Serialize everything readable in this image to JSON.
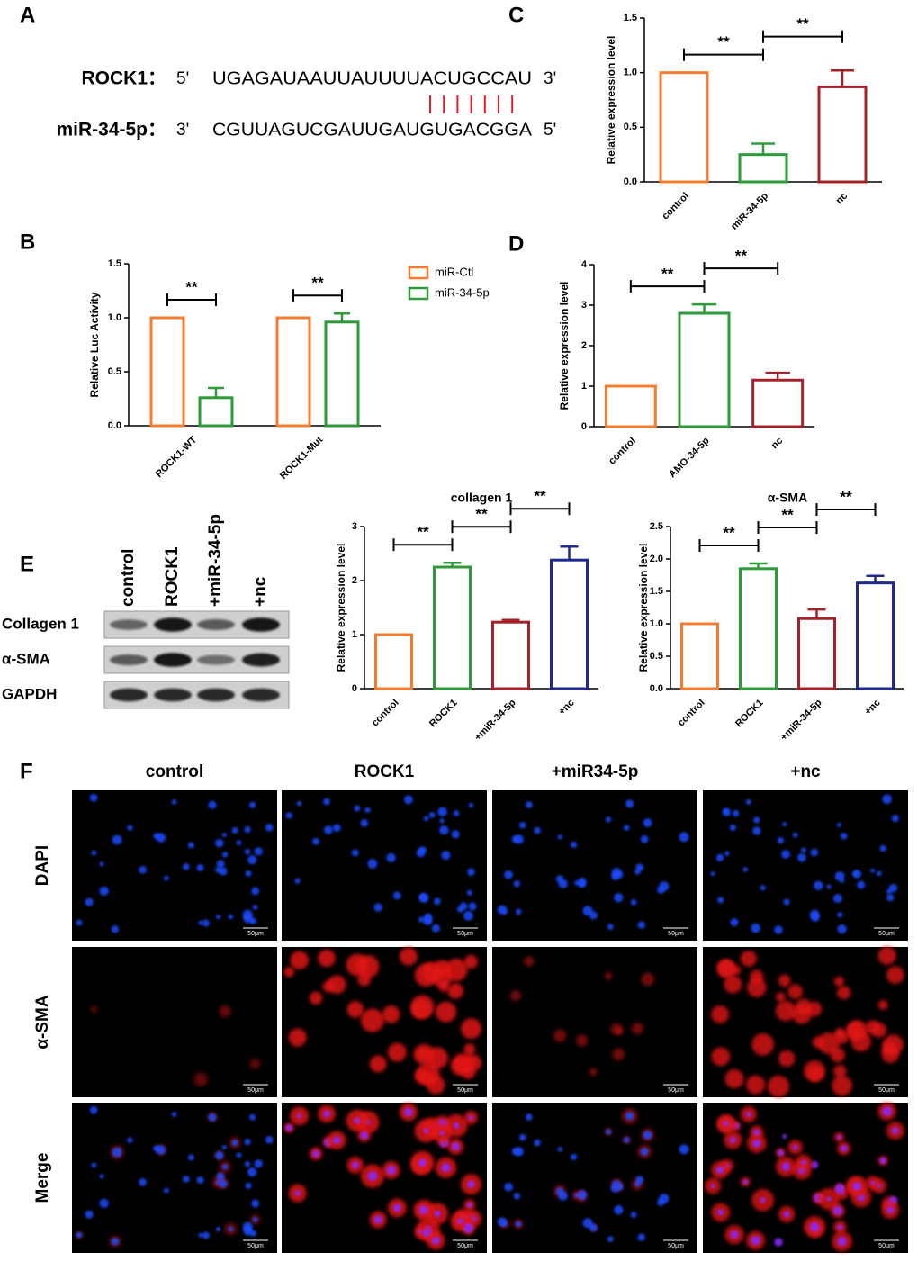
{
  "panel_labels": [
    "A",
    "B",
    "C",
    "D",
    "E",
    "F"
  ],
  "sequence": {
    "rows": [
      {
        "name": "ROCK1：",
        "left": "5'",
        "seq": "UGAGAUAAUUAUUUUACUGCCAU",
        "right": "3'"
      },
      {
        "name": "miR-34-5p：",
        "left": "3'",
        "seq": "CGUUAGUCGAUUGAUGUGACGGA",
        "right": "5'"
      }
    ]
  },
  "chart_data": [
    {
      "type": "bar",
      "ylabel": "Relative expression level",
      "categories": [
        "control",
        "miR-34-5p",
        "nc"
      ],
      "values": [
        1.0,
        0.25,
        0.87
      ],
      "errors": [
        0,
        0.1,
        0.15
      ],
      "colors": [
        "#f47c30",
        "#2e9a3a",
        "#a3222a"
      ],
      "ylim": [
        0,
        1.5
      ],
      "yticks": [
        {
          "value": 0,
          "label": "0.0"
        },
        0.5,
        {
          "value": 1,
          "label": "1.0"
        },
        1.5
      ],
      "significance": [
        {
          "label": "**",
          "categories": [
            "control",
            "miR-34-5p"
          ]
        },
        {
          "label": "**",
          "categories": [
            "miR-34-5p",
            "nc"
          ]
        }
      ]
    },
    {
      "type": "grouped_bar",
      "ylabel": "Relative Luc Activity",
      "categories": [
        "ROCK1-WT",
        "ROCK1-Mut"
      ],
      "series": [
        {
          "name": "miR-Ctl",
          "color": "#f47c30",
          "values": [
            1.0,
            1.0
          ],
          "errors": [
            0,
            0
          ]
        },
        {
          "name": "miR-34-5p",
          "color": "#2e9a3a",
          "values": [
            0.26,
            0.96
          ],
          "errors": [
            0.09,
            0.08
          ]
        }
      ],
      "ylim": [
        0,
        1.5
      ],
      "yticks": [
        {
          "value": 0,
          "label": "0.0"
        },
        0.5,
        {
          "value": 1,
          "label": "1.0"
        },
        1.5
      ],
      "legend": "right",
      "significance": [
        {
          "label": "**",
          "group": "ROCK1-WT"
        },
        {
          "label": "**",
          "group": "ROCK1-Mut"
        }
      ]
    },
    {
      "type": "bar",
      "ylabel": "Relative expression level",
      "categories": [
        "control",
        "AMO-34-5p",
        "nc"
      ],
      "values": [
        1.0,
        2.8,
        1.15
      ],
      "errors": [
        0,
        0.22,
        0.18
      ],
      "colors": [
        "#f47c30",
        "#2e9a3a",
        "#a3222a"
      ],
      "ylim": [
        0,
        4
      ],
      "yticks": [
        0,
        1,
        2,
        3,
        4
      ],
      "significance": [
        {
          "label": "**",
          "categories": [
            "control",
            "AMO-34-5p"
          ]
        },
        {
          "label": "**",
          "categories": [
            "AMO-34-5p",
            "nc"
          ]
        }
      ]
    },
    {
      "type": "bar",
      "title": "collagen 1",
      "ylabel": "Relative expression level",
      "categories": [
        "control",
        "ROCK1",
        "+miR-34-5p",
        "+nc"
      ],
      "values": [
        1.0,
        2.25,
        1.23,
        2.38
      ],
      "errors": [
        0,
        0.08,
        0.04,
        0.25
      ],
      "colors": [
        "#f47c30",
        "#2e9a3a",
        "#a3222a",
        "#1f2a8c"
      ],
      "ylim": [
        0,
        3
      ],
      "yticks": [
        0,
        1,
        2,
        3
      ],
      "significance": [
        {
          "label": "**",
          "categories": [
            "control",
            "ROCK1"
          ]
        },
        {
          "label": "**",
          "categories": [
            "ROCK1",
            "+miR-34-5p"
          ]
        },
        {
          "label": "**",
          "categories": [
            "+miR-34-5p",
            "+nc"
          ]
        }
      ]
    },
    {
      "type": "bar",
      "title": "α-SMA",
      "ylabel": "Relative expression level",
      "categories": [
        "control",
        "ROCK1",
        "+miR-34-5p",
        "+nc"
      ],
      "values": [
        1.0,
        1.85,
        1.08,
        1.63
      ],
      "errors": [
        0,
        0.08,
        0.14,
        0.11
      ],
      "colors": [
        "#f47c30",
        "#2e9a3a",
        "#a3222a",
        "#1f2a8c"
      ],
      "ylim": [
        0,
        2.5
      ],
      "yticks": [
        {
          "value": 0,
          "label": "0.0"
        },
        0.5,
        {
          "value": 1,
          "label": "1.0"
        },
        1.5,
        {
          "value": 2,
          "label": "2.0"
        },
        2.5
      ],
      "significance": [
        {
          "label": "**",
          "categories": [
            "control",
            "ROCK1"
          ]
        },
        {
          "label": "**",
          "categories": [
            "ROCK1",
            "+miR-34-5p"
          ]
        },
        {
          "label": "**",
          "categories": [
            "+miR-34-5p",
            "+nc"
          ]
        }
      ]
    }
  ],
  "western_blot": {
    "lanes": [
      "control",
      "ROCK1",
      "+miR-34-5p",
      "+nc"
    ],
    "proteins": [
      "Collagen 1",
      "α-SMA",
      "GAPDH"
    ]
  },
  "immunofluorescence": {
    "groups": [
      "control",
      "ROCK1",
      "+miR34-5p",
      "+nc"
    ],
    "stains": [
      "DAPI",
      "α-SMA",
      "Merge"
    ],
    "scale_bar": "50μm"
  }
}
